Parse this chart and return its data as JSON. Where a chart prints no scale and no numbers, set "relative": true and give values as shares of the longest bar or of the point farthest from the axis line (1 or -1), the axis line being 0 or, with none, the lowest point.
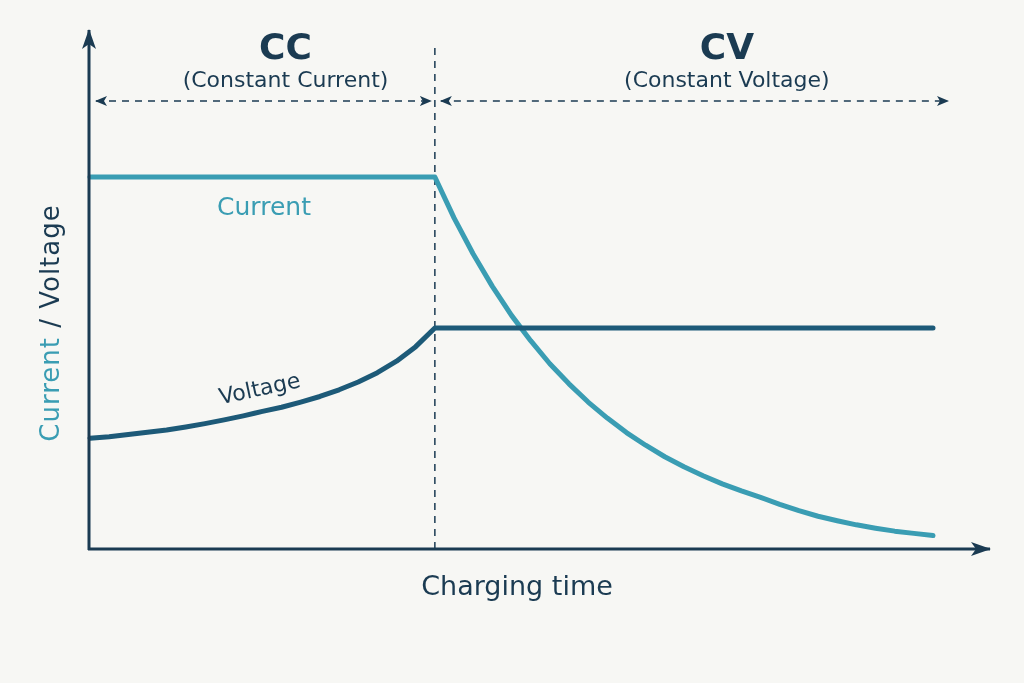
{
  "chart_data": {
    "type": "line",
    "relative": true,
    "xlabel": "Charging time",
    "ylabel": "Current / Voltage",
    "categories": [
      null,
      null,
      null,
      null,
      null,
      null,
      null,
      null,
      null,
      null,
      null,
      null,
      null,
      null,
      null,
      null,
      null,
      null,
      null,
      null,
      null,
      null,
      null,
      null,
      null,
      null,
      null,
      null,
      null,
      null,
      null,
      null,
      null,
      null,
      null,
      null,
      null,
      null,
      null,
      null,
      null,
      null,
      null,
      null,
      null
    ],
    "series": [
      {
        "name": "Current",
        "color": "#3a9db3",
        "values": [
          1,
          1,
          1,
          1,
          1,
          1,
          1,
          1,
          1,
          1,
          1,
          1,
          1,
          1,
          1,
          1,
          1,
          1,
          1,
          0.89,
          0.793,
          0.706,
          0.628,
          0.56,
          0.498,
          0.444,
          0.395,
          0.352,
          0.313,
          0.279,
          0.248,
          0.221,
          0.197,
          0.175,
          0.156,
          0.139,
          0.12,
          0.103,
          0.088,
          0.076,
          0.065,
          0.056,
          0.048,
          0.042,
          0.036
        ]
      },
      {
        "name": "Voltage",
        "color": "#1d5a78",
        "values": [
          0.298,
          0.302,
          0.308,
          0.314,
          0.32,
          0.328,
          0.337,
          0.347,
          0.358,
          0.37,
          0.381,
          0.395,
          0.41,
          0.428,
          0.449,
          0.474,
          0.505,
          0.544,
          0.594,
          0.594,
          0.594,
          0.594,
          0.594,
          0.594,
          0.594,
          0.594,
          0.594,
          0.594,
          0.594,
          0.594,
          0.594,
          0.594,
          0.594,
          0.594,
          0.594,
          0.594,
          0.594,
          0.594,
          0.594,
          0.594,
          0.594,
          0.594,
          0.594,
          0.594,
          0.594
        ]
      }
    ],
    "annotations": [
      "CC\n(Constant Current)",
      "CV\n(Constant Voltage)"
    ]
  }
}
